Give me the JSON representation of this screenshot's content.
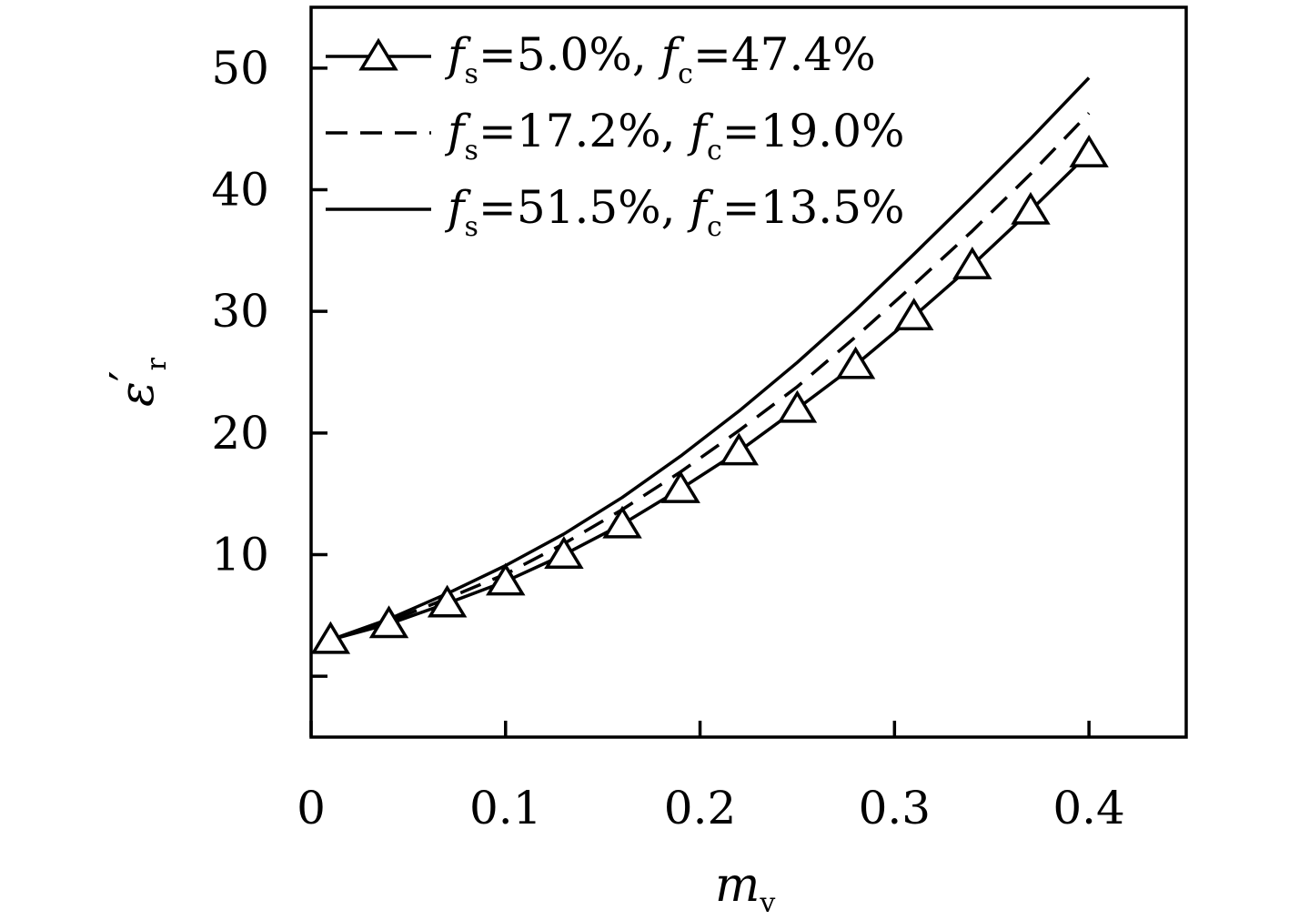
{
  "chart_data": {
    "type": "line",
    "xlabel": "m_v",
    "xlabel_main": "m",
    "xlabel_sub": "v",
    "ylabel": "ε′_r",
    "ylabel_main": "ε",
    "ylabel_prime": "′",
    "ylabel_sub": "r",
    "xlim": [
      0.0,
      0.45
    ],
    "ylim": [
      -5,
      55
    ],
    "x_ticks": [
      0.0,
      0.1,
      0.2,
      0.3,
      0.4
    ],
    "x_tick_labels": [
      "0",
      "0.1",
      "0.2",
      "0.3",
      "0.4"
    ],
    "y_ticks": [
      0,
      10,
      20,
      30,
      40,
      50
    ],
    "y_tick_labels": [
      "",
      "10",
      "20",
      "30",
      "40",
      "50"
    ],
    "grid": false,
    "legend_position": "top-left",
    "series": [
      {
        "name": "fs=5.0%, fc=47.4%",
        "legend": {
          "fs": "5.0%",
          "fc": "47.4%"
        },
        "style": "solid",
        "marker": "triangle",
        "x": [
          0.01,
          0.04,
          0.07,
          0.1,
          0.13,
          0.16,
          0.19,
          0.22,
          0.25,
          0.28,
          0.31,
          0.34,
          0.37,
          0.4
        ],
        "y": [
          3.0,
          4.3,
          6.0,
          7.8,
          10.0,
          12.5,
          15.4,
          18.5,
          22.0,
          25.6,
          29.6,
          33.8,
          38.3,
          43.0
        ]
      },
      {
        "name": "fs=17.2%, fc=19.0%",
        "legend": {
          "fs": "17.2%",
          "fc": "19.0%"
        },
        "style": "dashed",
        "marker": "none",
        "x": [
          0.01,
          0.04,
          0.07,
          0.1,
          0.13,
          0.16,
          0.19,
          0.22,
          0.25,
          0.28,
          0.31,
          0.34,
          0.37,
          0.4
        ],
        "y": [
          3.0,
          4.5,
          6.4,
          8.4,
          10.9,
          13.7,
          16.8,
          20.2,
          23.8,
          27.9,
          32.2,
          36.6,
          41.3,
          46.3
        ]
      },
      {
        "name": "fs=51.5%, fc=13.5%",
        "legend": {
          "fs": "51.5%",
          "fc": "13.5%"
        },
        "style": "solid",
        "marker": "none",
        "x": [
          0.01,
          0.04,
          0.07,
          0.1,
          0.13,
          0.16,
          0.19,
          0.22,
          0.25,
          0.28,
          0.31,
          0.34,
          0.37,
          0.4
        ],
        "y": [
          3.0,
          4.7,
          6.8,
          9.1,
          11.7,
          14.7,
          18.1,
          21.8,
          25.8,
          30.1,
          34.7,
          39.4,
          44.2,
          49.2
        ]
      }
    ]
  }
}
